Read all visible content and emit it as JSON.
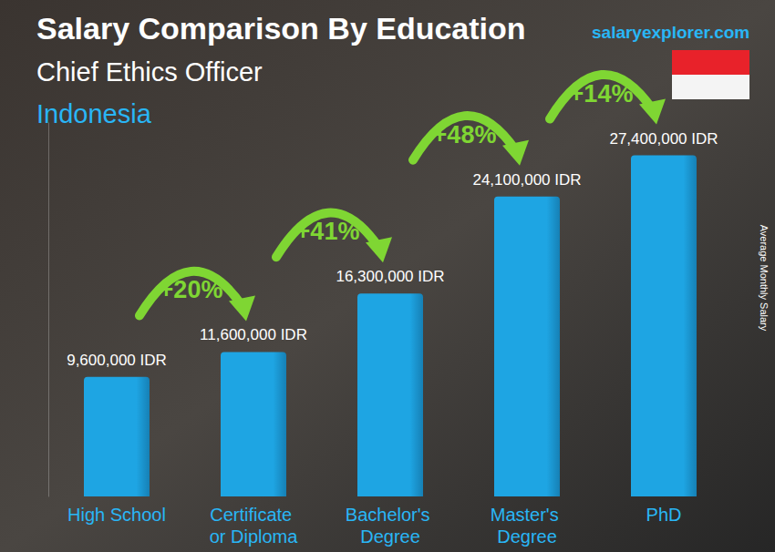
{
  "chart_data": {
    "type": "bar",
    "title": "Salary Comparison By Education",
    "subtitle": "Chief Ethics Officer",
    "location": "Indonesia",
    "source": "salaryexplorer.com",
    "ylabel": "Average Monthly Salary",
    "categories": [
      "High School",
      "Certificate or Diploma",
      "Bachelor's Degree",
      "Master's Degree",
      "PhD"
    ],
    "values": [
      9600000,
      11600000,
      16300000,
      24100000,
      27400000
    ],
    "value_labels": [
      "9,600,000 IDR",
      "11,600,000 IDR",
      "16,300,000 IDR",
      "24,100,000 IDR",
      "27,400,000 IDR"
    ],
    "data_labels": true,
    "color": "#1ea5e3",
    "annotations": [
      "+20%",
      "+41%",
      "+48%",
      "+14%"
    ],
    "ylim": [
      0,
      30000000
    ],
    "tick_labels": "x",
    "grid": false
  }
}
